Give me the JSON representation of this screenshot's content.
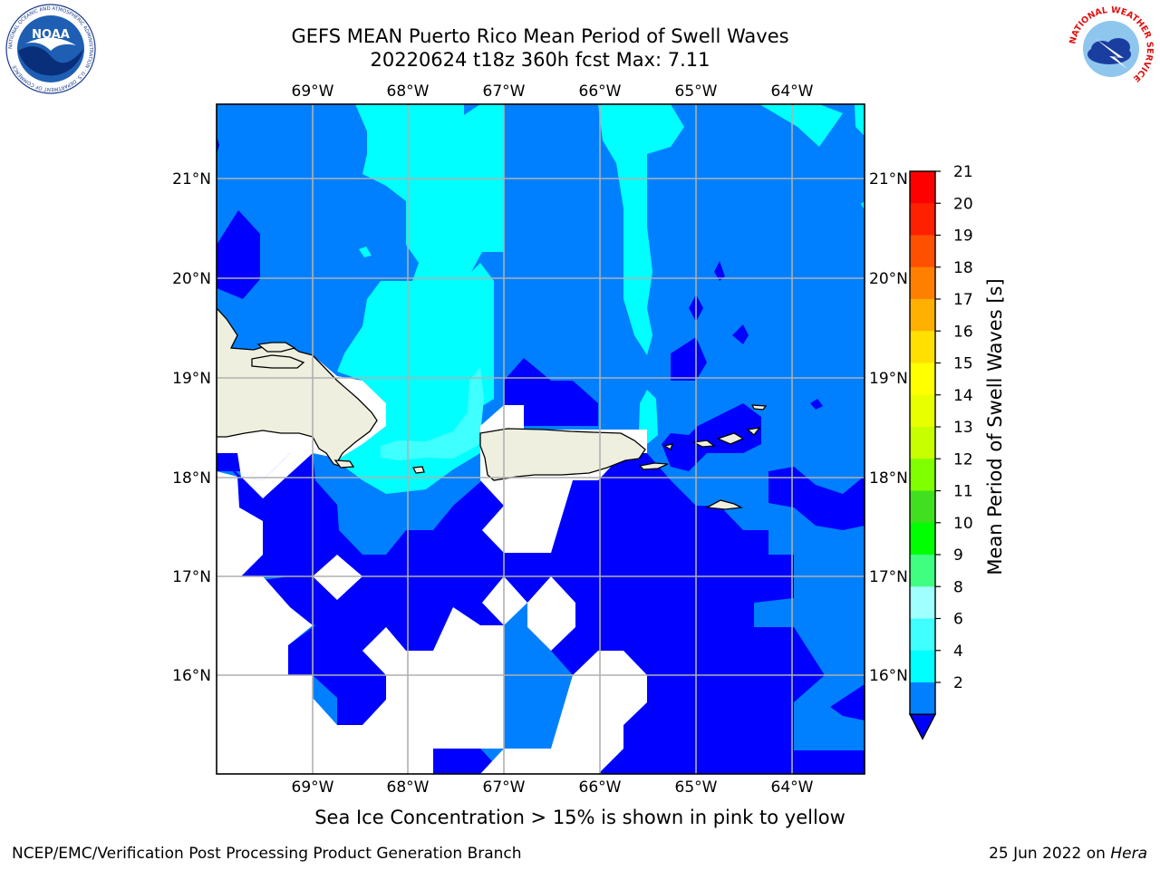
{
  "header": {
    "title_line1": "GEFS MEAN Puerto Rico Mean Period of Swell Waves",
    "title_line2": "20220624 t18z 360h fcst   Max: 7.11"
  },
  "logos": {
    "noaa_text": "NOAA",
    "noaa_ring_text": "NATIONAL OCEANIC AND ATMOSPHERIC ADMINISTRATION · U.S. DEPARTMENT OF COMMERCE",
    "nws_ring_text": "NATIONAL WEATHER SERVICE"
  },
  "map": {
    "lon_labels": [
      "69°W",
      "68°W",
      "67°W",
      "66°W",
      "65°W",
      "64°W"
    ],
    "lat_labels": [
      "21°N",
      "20°N",
      "19°N",
      "18°N",
      "17°N",
      "16°N"
    ],
    "colors": {
      "land": "#efefdf",
      "no_data": "#ffffff",
      "lt2": "#0000ff",
      "c2_4": "#0080ff",
      "c4_6": "#00ffff",
      "c6_8": "#40ffff",
      "grid": "#b0b0b0"
    }
  },
  "colorbar": {
    "title": "Mean Period of Swell Waves [s]",
    "ticks": [
      "21",
      "20",
      "19",
      "18",
      "17",
      "16",
      "15",
      "14",
      "13",
      "12",
      "11",
      "10",
      "9",
      "8",
      "6",
      "4",
      "2"
    ],
    "band_colors": [
      "#ff0000",
      "#ff2000",
      "#ff5000",
      "#ff8000",
      "#ffb000",
      "#ffe000",
      "#ffff00",
      "#e8ff00",
      "#c8ff00",
      "#80ff00",
      "#40e020",
      "#00ff00",
      "#40ff80",
      "#a0ffff",
      "#40ffff",
      "#00ffff",
      "#0080ff"
    ],
    "extend_color": "#0000ff"
  },
  "notes": {
    "ice_note": "Sea Ice Concentration > 15% is shown in pink to yellow"
  },
  "footer": {
    "left": "NCEP/EMC/Verification Post Processing Product Generation Branch",
    "date": "25 Jun 2022 on ",
    "machine": "Hera"
  }
}
